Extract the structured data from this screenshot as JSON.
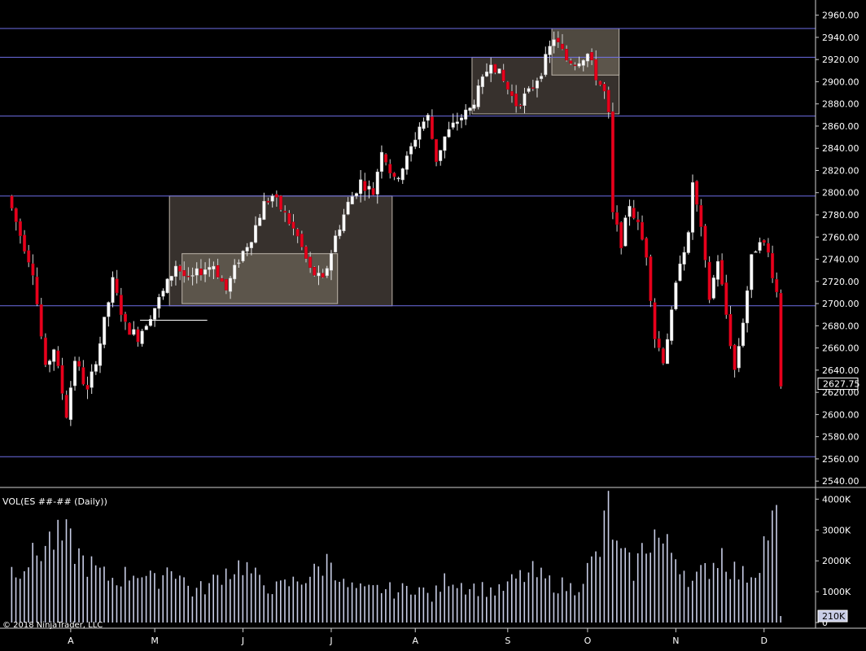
{
  "chart_data": [
    {
      "type": "candlestick",
      "title": "",
      "price_axis": {
        "min": 2535,
        "max": 2970,
        "ticks": [
          "2960.00",
          "2940.00",
          "2920.00",
          "2900.00",
          "2880.00",
          "2860.00",
          "2840.00",
          "2820.00",
          "2800.00",
          "2780.00",
          "2760.00",
          "2740.00",
          "2720.00",
          "2700.00",
          "2680.00",
          "2660.00",
          "2640.00",
          "2620.00",
          "2600.00",
          "2580.00",
          "2560.00",
          "2540.00"
        ]
      },
      "last_price": "2627.75",
      "last_price_value": 2627.75,
      "horizontal_levels": [
        2948,
        2922,
        2869,
        2797,
        2698,
        2562
      ],
      "level_color": "#6e6ee6",
      "up_color": "#ffffff",
      "down_color": "#e8001c",
      "shaded_boxes": [
        {
          "bar_start": 38,
          "bar_end": 91,
          "price_high": 2797,
          "price_low": 2698
        },
        {
          "bar_start": 41,
          "bar_end": 78,
          "price_high": 2745,
          "price_low": 2700
        },
        {
          "bar_start": 110,
          "bar_end": 145,
          "price_high": 2922,
          "price_low": 2871
        },
        {
          "bar_start": 129,
          "bar_end": 145,
          "price_high": 2948,
          "price_low": 2906
        }
      ],
      "month_labels": [
        {
          "label": "A",
          "bar": 14
        },
        {
          "label": "M",
          "bar": 34
        },
        {
          "label": "J",
          "bar": 55
        },
        {
          "label": "J",
          "bar": 76
        },
        {
          "label": "A",
          "bar": 96
        },
        {
          "label": "S",
          "bar": 118
        },
        {
          "label": "O",
          "bar": 137
        },
        {
          "label": "N",
          "bar": 158
        },
        {
          "label": "D",
          "bar": 179
        }
      ],
      "bar_count": 184,
      "anchors": [
        [
          0,
          2797
        ],
        [
          3,
          2762
        ],
        [
          6,
          2730
        ],
        [
          9,
          2640
        ],
        [
          11,
          2660
        ],
        [
          14,
          2600
        ],
        [
          16,
          2650
        ],
        [
          19,
          2620
        ],
        [
          22,
          2665
        ],
        [
          25,
          2720
        ],
        [
          28,
          2680
        ],
        [
          31,
          2670
        ],
        [
          34,
          2690
        ],
        [
          37,
          2710
        ],
        [
          40,
          2735
        ],
        [
          43,
          2720
        ],
        [
          46,
          2730
        ],
        [
          49,
          2735
        ],
        [
          52,
          2712
        ],
        [
          55,
          2740
        ],
        [
          58,
          2760
        ],
        [
          61,
          2790
        ],
        [
          63,
          2797
        ],
        [
          66,
          2780
        ],
        [
          69,
          2760
        ],
        [
          72,
          2730
        ],
        [
          75,
          2720
        ],
        [
          78,
          2760
        ],
        [
          81,
          2790
        ],
        [
          84,
          2810
        ],
        [
          87,
          2800
        ],
        [
          89,
          2840
        ],
        [
          92,
          2810
        ],
        [
          95,
          2830
        ],
        [
          98,
          2860
        ],
        [
          100,
          2868
        ],
        [
          102,
          2830
        ],
        [
          104,
          2850
        ],
        [
          107,
          2865
        ],
        [
          110,
          2875
        ],
        [
          113,
          2900
        ],
        [
          115,
          2920
        ],
        [
          118,
          2900
        ],
        [
          121,
          2880
        ],
        [
          124,
          2890
        ],
        [
          127,
          2910
        ],
        [
          130,
          2940
        ],
        [
          133,
          2920
        ],
        [
          135,
          2918
        ],
        [
          138,
          2925
        ],
        [
          140,
          2905
        ],
        [
          142,
          2890
        ],
        [
          143,
          2869
        ],
        [
          144,
          2780
        ],
        [
          146,
          2755
        ],
        [
          148,
          2790
        ],
        [
          150,
          2770
        ],
        [
          152,
          2745
        ],
        [
          154,
          2670
        ],
        [
          156,
          2650
        ],
        [
          158,
          2690
        ],
        [
          160,
          2740
        ],
        [
          162,
          2760
        ],
        [
          163,
          2810
        ],
        [
          165,
          2765
        ],
        [
          167,
          2705
        ],
        [
          169,
          2740
        ],
        [
          171,
          2690
        ],
        [
          173,
          2640
        ],
        [
          175,
          2685
        ],
        [
          177,
          2740
        ],
        [
          179,
          2760
        ],
        [
          181,
          2745
        ],
        [
          183,
          2710
        ],
        [
          184,
          2628
        ]
      ]
    },
    {
      "type": "bar",
      "title": "VOL(ES ##-## (Daily))",
      "volume_axis": {
        "min": 0,
        "max": 4300000,
        "ticks": [
          "4000K",
          "3000K",
          "2000K",
          "1000K",
          "0"
        ]
      },
      "last_volume": "210K",
      "last_volume_value": 210000,
      "bar_color": "#c8cde6",
      "anchors": [
        [
          0,
          1700
        ],
        [
          5,
          2100
        ],
        [
          9,
          2650
        ],
        [
          13,
          2700
        ],
        [
          17,
          2000
        ],
        [
          22,
          1500
        ],
        [
          25,
          1400
        ],
        [
          30,
          1700
        ],
        [
          34,
          1300
        ],
        [
          38,
          1900
        ],
        [
          43,
          1000
        ],
        [
          47,
          1200
        ],
        [
          50,
          1600
        ],
        [
          55,
          1900
        ],
        [
          59,
          1300
        ],
        [
          63,
          1100
        ],
        [
          67,
          1300
        ],
        [
          72,
          1600
        ],
        [
          76,
          2100
        ],
        [
          79,
          1200
        ],
        [
          84,
          1000
        ],
        [
          88,
          1100
        ],
        [
          92,
          1000
        ],
        [
          96,
          1200
        ],
        [
          100,
          800
        ],
        [
          104,
          1500
        ],
        [
          108,
          1200
        ],
        [
          112,
          1100
        ],
        [
          116,
          1000
        ],
        [
          120,
          1400
        ],
        [
          124,
          1600
        ],
        [
          128,
          1300
        ],
        [
          131,
          1200
        ],
        [
          134,
          1100
        ],
        [
          138,
          1900
        ],
        [
          140,
          2300
        ],
        [
          142,
          3800
        ],
        [
          144,
          2300
        ],
        [
          148,
          1700
        ],
        [
          151,
          2600
        ],
        [
          153,
          2900
        ],
        [
          155,
          2500
        ],
        [
          158,
          2200
        ],
        [
          162,
          1300
        ],
        [
          166,
          1800
        ],
        [
          169,
          2300
        ],
        [
          171,
          1800
        ],
        [
          174,
          1500
        ],
        [
          177,
          1700
        ],
        [
          180,
          3000
        ],
        [
          182,
          3300
        ],
        [
          183,
          800
        ],
        [
          184,
          210
        ]
      ]
    }
  ],
  "panel": {
    "volume_label": "VOL(ES ##-## (Daily))",
    "copyright": "© 2018 NinjaTrader, LLC"
  },
  "colors": {
    "background": "#000000",
    "grid_border": "#cfcfcf",
    "box_fill_outer": "#3a342f",
    "box_fill_inner": "#6a6156"
  }
}
